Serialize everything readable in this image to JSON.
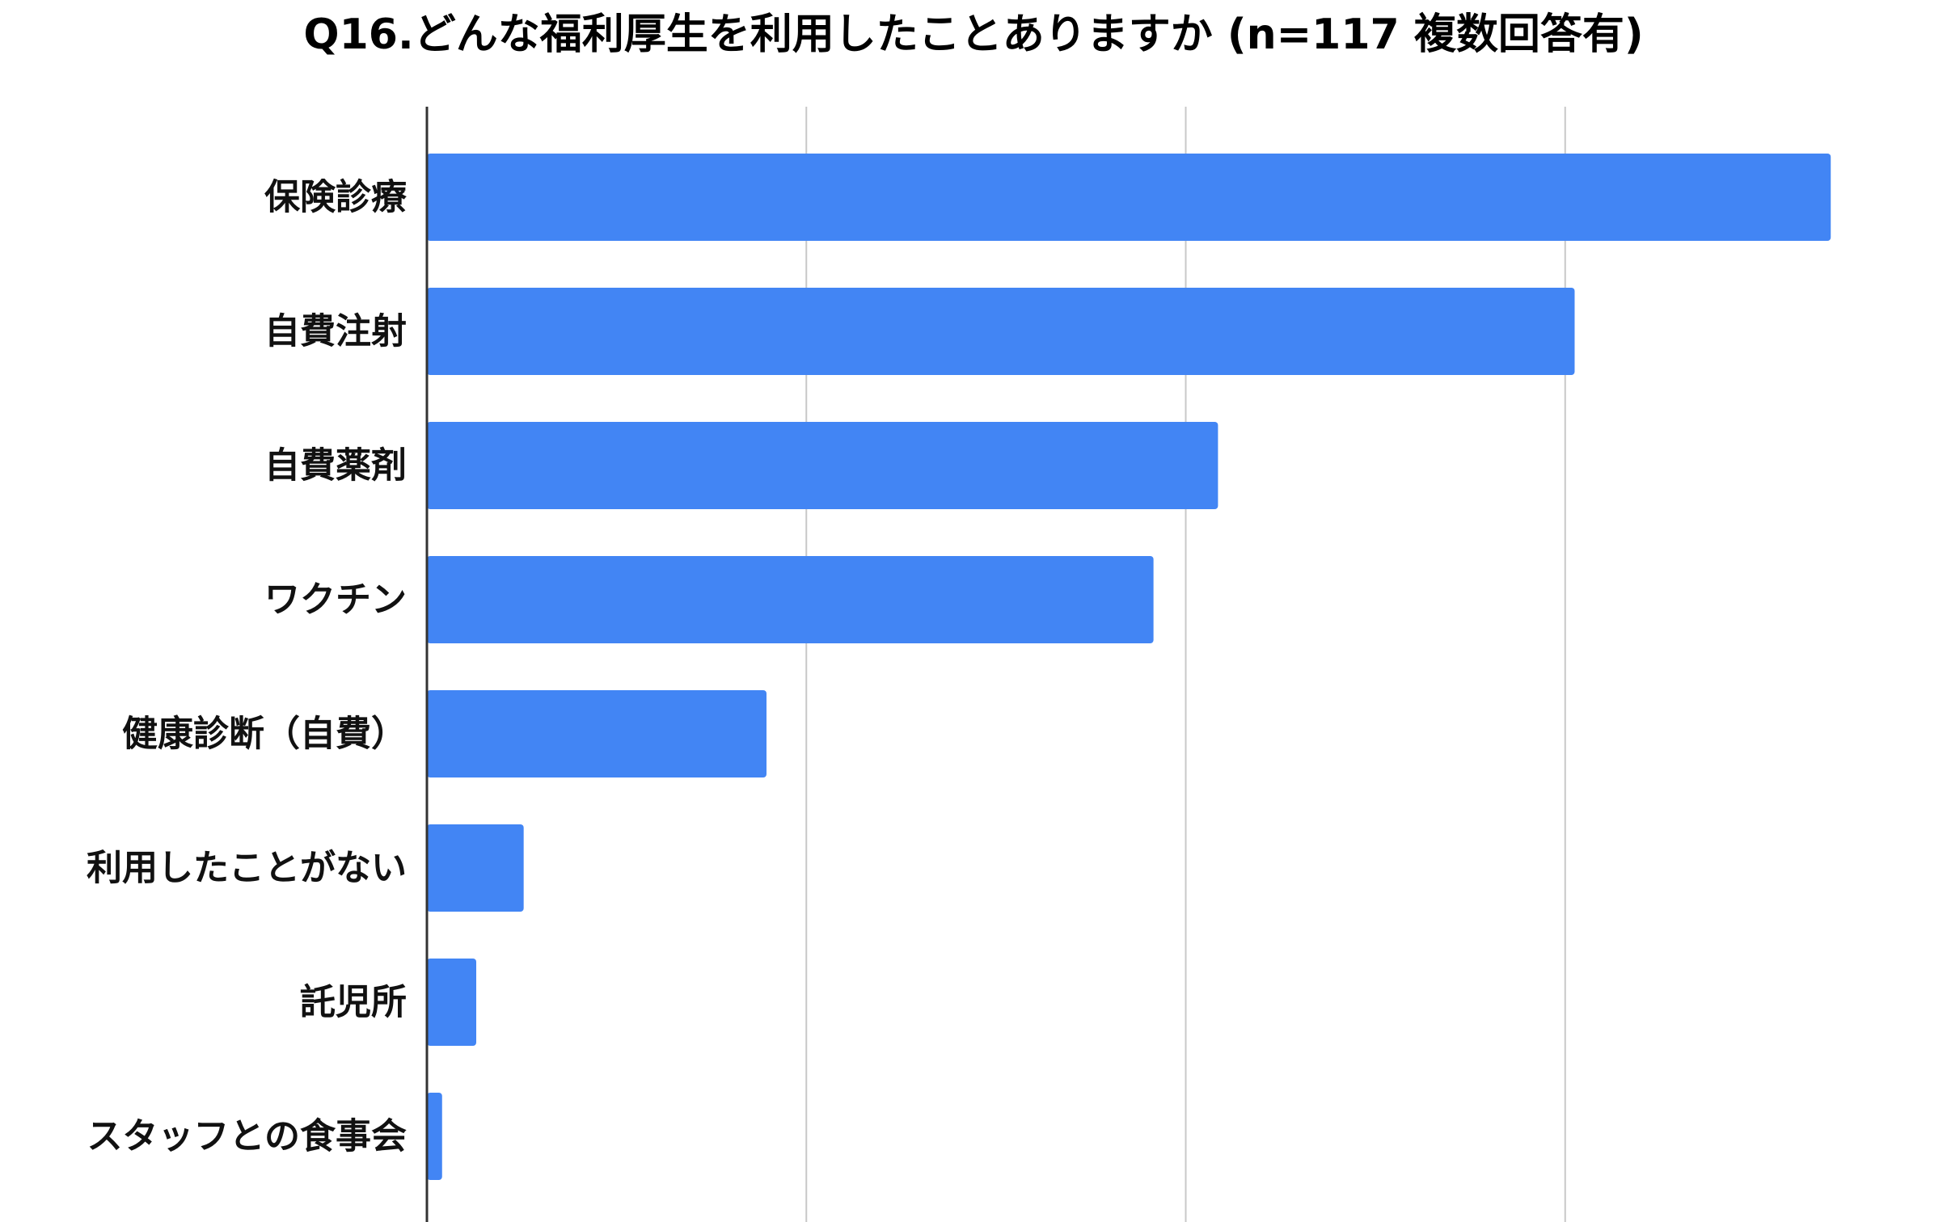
{
  "chart_data": {
    "type": "bar",
    "orientation": "horizontal",
    "title": "Q16.どんな福利厚生を利用したことありますか (n=117 複数回答有)",
    "categories": [
      "保険診療",
      "自費注射",
      "自費薬剤",
      "ワクチン",
      "健康診断（自費）",
      "利用したことがない",
      "託児所",
      "スタッフとの食事会"
    ],
    "values": [
      74,
      60.5,
      41.7,
      38.3,
      17.9,
      5.1,
      2.6,
      0.8
    ],
    "xlim": [
      0,
      80
    ],
    "x_gridlines": [
      20,
      40,
      60
    ],
    "xtick_labels_visible": false,
    "grid": true,
    "legend": "none",
    "colors": {
      "bar": "#4285F4",
      "grid": "#c8c8c8",
      "axis": "#333333"
    }
  }
}
